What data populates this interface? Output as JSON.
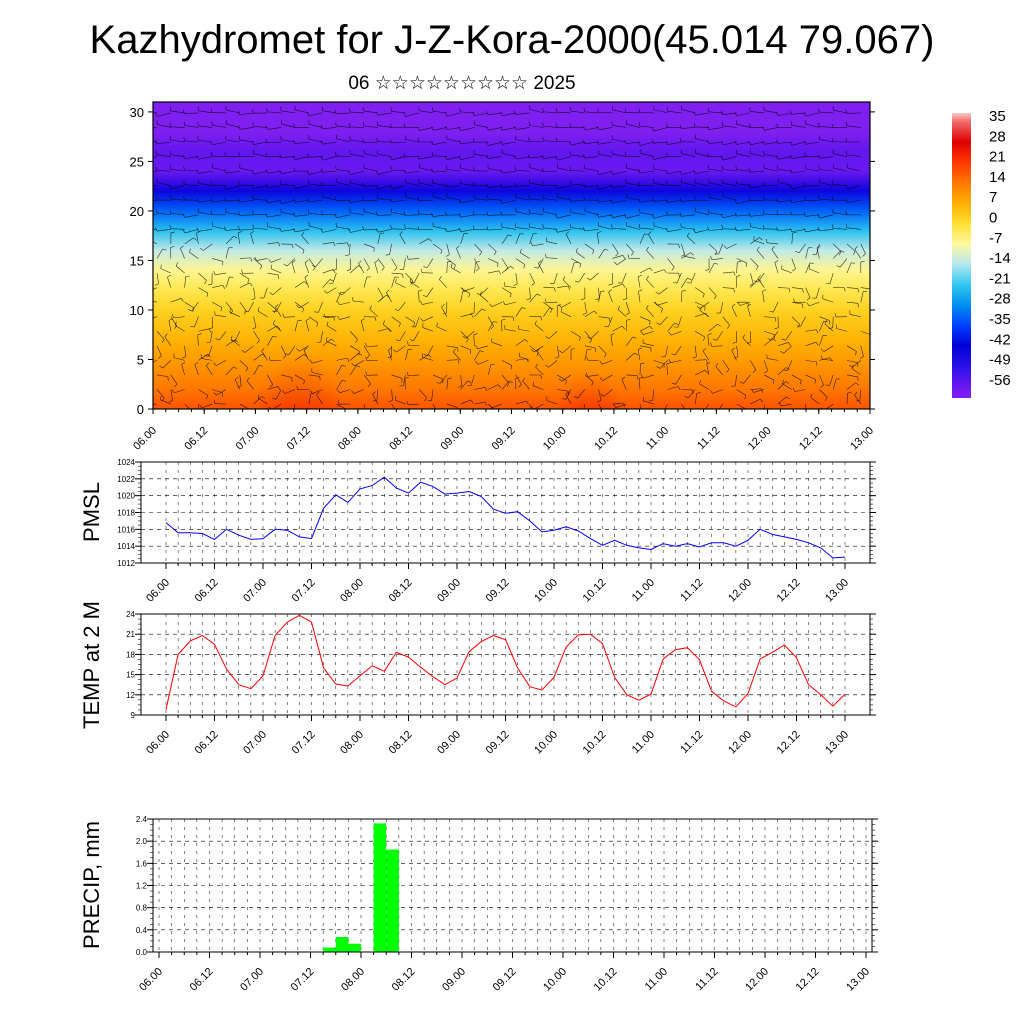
{
  "title": "Kazhydromet for J-Z-Kora-2000(45.014 79.067)",
  "subtitle": "06 ☆☆☆☆☆☆☆☆☆ 2025",
  "time_labels": [
    "06.00",
    "06.12",
    "07.00",
    "07.12",
    "08.00",
    "08.12",
    "09.00",
    "09.12",
    "10.00",
    "10.12",
    "11.00",
    "11.12",
    "12.00",
    "12.12",
    "13.00"
  ],
  "chart_data": [
    {
      "type": "heatmap",
      "panel": "upper-air temperature and wind cross-section",
      "x": [
        "06.00",
        "06.12",
        "07.00",
        "07.12",
        "08.00",
        "08.12",
        "09.00",
        "09.12",
        "10.00",
        "10.12",
        "11.00",
        "11.12",
        "12.00",
        "12.12",
        "13.00"
      ],
      "y_ticks": [
        0,
        5,
        10,
        15,
        20,
        25,
        30
      ],
      "ylim": [
        0,
        31
      ],
      "colorbar_labels": [
        "35",
        "28",
        "21",
        "14",
        "7",
        "0",
        "-7",
        "-14",
        "-21",
        "-28",
        "-35",
        "-42",
        "-49",
        "-56"
      ],
      "colorbar_range": [
        -60,
        38
      ],
      "temperature_profile": [
        {
          "level": 0,
          "value": 18
        },
        {
          "level": 2,
          "value": 14
        },
        {
          "level": 4,
          "value": 11
        },
        {
          "level": 6,
          "value": 8
        },
        {
          "level": 8,
          "value": 5
        },
        {
          "level": 10,
          "value": 2
        },
        {
          "level": 12,
          "value": -2
        },
        {
          "level": 14,
          "value": -6
        },
        {
          "level": 16,
          "value": -13
        },
        {
          "level": 18,
          "value": -22
        },
        {
          "level": 20,
          "value": -32
        },
        {
          "level": 22,
          "value": -44
        },
        {
          "level": 24,
          "value": -56
        },
        {
          "level": 26,
          "value": -55
        },
        {
          "level": 28,
          "value": -60
        },
        {
          "level": 31,
          "value": -60
        }
      ],
      "colors": {
        "warm": "#e00000",
        "neutral": "#ffffc0",
        "cold": "#8020f0"
      }
    },
    {
      "type": "line",
      "ylabel": "PMSL",
      "ylim": [
        1012,
        1024
      ],
      "y_ticks": [
        1012,
        1014,
        1016,
        1018,
        1020,
        1022,
        1024
      ],
      "x_step_hours": 3,
      "series": [
        {
          "color": "#0000ff",
          "values": [
            1016.8,
            1015.6,
            1015.6,
            1015.5,
            1014.8,
            1016.0,
            1015.3,
            1014.8,
            1014.9,
            1016.0,
            1015.9,
            1015.1,
            1014.9,
            1018.5,
            1020.1,
            1019.2,
            1020.8,
            1021.2,
            1022.2,
            1020.9,
            1020.3,
            1021.6,
            1021.1,
            1020.2,
            1020.3,
            1020.5,
            1019.9,
            1018.4,
            1017.9,
            1018.1,
            1017.0,
            1015.7,
            1015.9,
            1016.3,
            1015.8,
            1014.9,
            1014.1,
            1014.7,
            1014.1,
            1013.8,
            1013.6,
            1014.3,
            1014.0,
            1014.3,
            1013.9,
            1014.4,
            1014.4,
            1014.0,
            1014.7,
            1016.0,
            1015.4,
            1015.1,
            1014.8,
            1014.4,
            1013.8,
            1012.6,
            1012.7
          ]
        }
      ]
    },
    {
      "type": "line",
      "ylabel": "TEMP at 2 M",
      "ylim": [
        9,
        24
      ],
      "y_ticks": [
        9,
        12,
        15,
        18,
        21,
        24
      ],
      "x_step_hours": 3,
      "series": [
        {
          "color": "#ff0000",
          "values": [
            9.8,
            18.0,
            20.0,
            20.8,
            19.5,
            15.8,
            13.5,
            12.9,
            14.8,
            20.8,
            22.8,
            23.8,
            22.8,
            16.0,
            13.6,
            13.3,
            14.8,
            16.3,
            15.5,
            18.3,
            17.6,
            16.1,
            14.7,
            13.5,
            14.5,
            18.4,
            19.9,
            20.8,
            20.2,
            16.0,
            13.2,
            12.7,
            14.6,
            19.1,
            20.9,
            21.0,
            19.6,
            14.6,
            12.0,
            11.2,
            12.1,
            17.3,
            18.7,
            19.0,
            17.2,
            12.5,
            11.1,
            10.2,
            12.2,
            17.3,
            18.3,
            19.4,
            17.5,
            13.5,
            12.0,
            10.3,
            12.1
          ]
        }
      ]
    },
    {
      "type": "bar",
      "ylabel": "PRECIP, mm",
      "ylim": [
        0,
        2.4
      ],
      "y_ticks": [
        "0.0",
        "0.4",
        "0.8",
        "1.2",
        "1.6",
        "2.0",
        "2.4"
      ],
      "x_step_hours": 3,
      "series": [
        {
          "color": "#00ff00",
          "values": [
            0,
            0,
            0,
            0,
            0,
            0,
            0,
            0,
            0,
            0,
            0,
            0,
            0,
            0.08,
            0.27,
            0.15,
            0,
            2.32,
            1.85,
            0,
            0,
            0,
            0,
            0,
            0,
            0,
            0,
            0,
            0,
            0,
            0,
            0,
            0,
            0,
            0,
            0,
            0,
            0,
            0,
            0,
            0,
            0,
            0,
            0,
            0,
            0,
            0,
            0,
            0,
            0,
            0,
            0,
            0,
            0,
            0,
            0
          ]
        }
      ]
    }
  ]
}
